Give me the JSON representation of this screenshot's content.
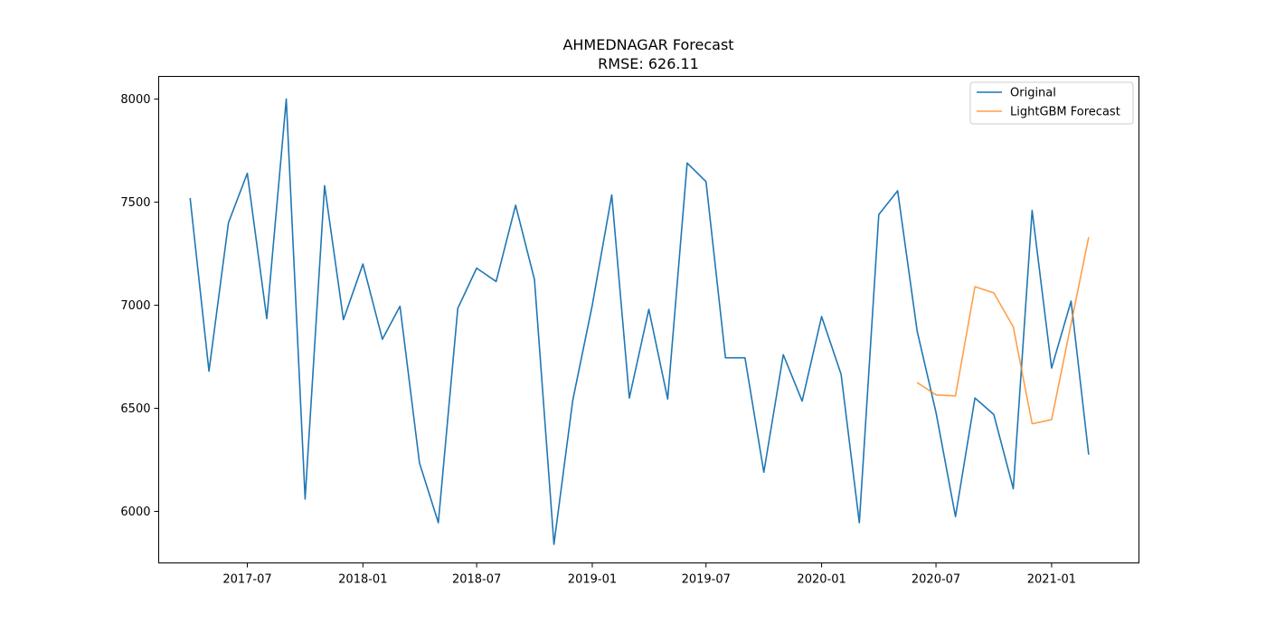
{
  "chart_data": {
    "type": "line",
    "title": "AHMEDNAGAR Forecast",
    "subtitle": "RMSE: 626.11",
    "xlabel": "",
    "ylabel": "",
    "xlim": [
      "2017-02-10",
      "2021-05-20"
    ],
    "ylim": [
      5750,
      8110
    ],
    "x_ticks": [
      {
        "value": "2017-07-01",
        "label": "2017-07"
      },
      {
        "value": "2018-01-01",
        "label": "2018-01"
      },
      {
        "value": "2018-07-01",
        "label": "2018-07"
      },
      {
        "value": "2019-01-01",
        "label": "2019-01"
      },
      {
        "value": "2019-07-01",
        "label": "2019-07"
      },
      {
        "value": "2020-01-01",
        "label": "2020-01"
      },
      {
        "value": "2020-07-01",
        "label": "2020-07"
      },
      {
        "value": "2021-01-01",
        "label": "2021-01"
      }
    ],
    "y_ticks": [
      6000,
      6500,
      7000,
      7500,
      8000
    ],
    "grid": false,
    "legend_position": "top-right",
    "series": [
      {
        "name": "Original",
        "color": "#1f77b4",
        "points": [
          [
            "2017-04-01",
            7520
          ],
          [
            "2017-05-01",
            6680
          ],
          [
            "2017-06-01",
            7400
          ],
          [
            "2017-07-01",
            7640
          ],
          [
            "2017-08-01",
            6935
          ],
          [
            "2017-09-01",
            8000
          ],
          [
            "2017-10-01",
            6060
          ],
          [
            "2017-11-01",
            7580
          ],
          [
            "2017-12-01",
            6930
          ],
          [
            "2018-01-01",
            7200
          ],
          [
            "2018-02-01",
            6835
          ],
          [
            "2018-03-01",
            6995
          ],
          [
            "2018-04-01",
            6235
          ],
          [
            "2018-05-01",
            5945
          ],
          [
            "2018-06-01",
            6985
          ],
          [
            "2018-07-01",
            7180
          ],
          [
            "2018-08-01",
            7115
          ],
          [
            "2018-09-01",
            7485
          ],
          [
            "2018-10-01",
            7125
          ],
          [
            "2018-11-01",
            5840
          ],
          [
            "2018-12-01",
            6540
          ],
          [
            "2019-01-01",
            7000
          ],
          [
            "2019-02-01",
            7535
          ],
          [
            "2019-03-01",
            6550
          ],
          [
            "2019-04-01",
            6980
          ],
          [
            "2019-05-01",
            6545
          ],
          [
            "2019-06-01",
            7690
          ],
          [
            "2019-07-01",
            7600
          ],
          [
            "2019-08-01",
            6745
          ],
          [
            "2019-09-01",
            6745
          ],
          [
            "2019-10-01",
            6190
          ],
          [
            "2019-11-01",
            6760
          ],
          [
            "2019-12-01",
            6535
          ],
          [
            "2020-01-01",
            6945
          ],
          [
            "2020-02-01",
            6665
          ],
          [
            "2020-03-01",
            5945
          ],
          [
            "2020-04-01",
            7440
          ],
          [
            "2020-05-01",
            7555
          ],
          [
            "2020-06-01",
            6875
          ],
          [
            "2020-07-01",
            6480
          ],
          [
            "2020-08-01",
            5975
          ],
          [
            "2020-09-01",
            6550
          ],
          [
            "2020-10-01",
            6470
          ],
          [
            "2020-11-01",
            6110
          ],
          [
            "2020-12-01",
            7460
          ],
          [
            "2021-01-01",
            6695
          ],
          [
            "2021-02-01",
            7020
          ],
          [
            "2021-03-01",
            6275
          ]
        ]
      },
      {
        "name": "LightGBM Forecast",
        "color": "#ff7f0e",
        "points": [
          [
            "2020-06-01",
            6625
          ],
          [
            "2020-07-01",
            6565
          ],
          [
            "2020-08-01",
            6560
          ],
          [
            "2020-09-01",
            7090
          ],
          [
            "2020-10-01",
            7060
          ],
          [
            "2020-11-01",
            6895
          ],
          [
            "2020-12-01",
            6425
          ],
          [
            "2021-01-01",
            6445
          ],
          [
            "2021-03-01",
            7330
          ]
        ]
      }
    ]
  }
}
